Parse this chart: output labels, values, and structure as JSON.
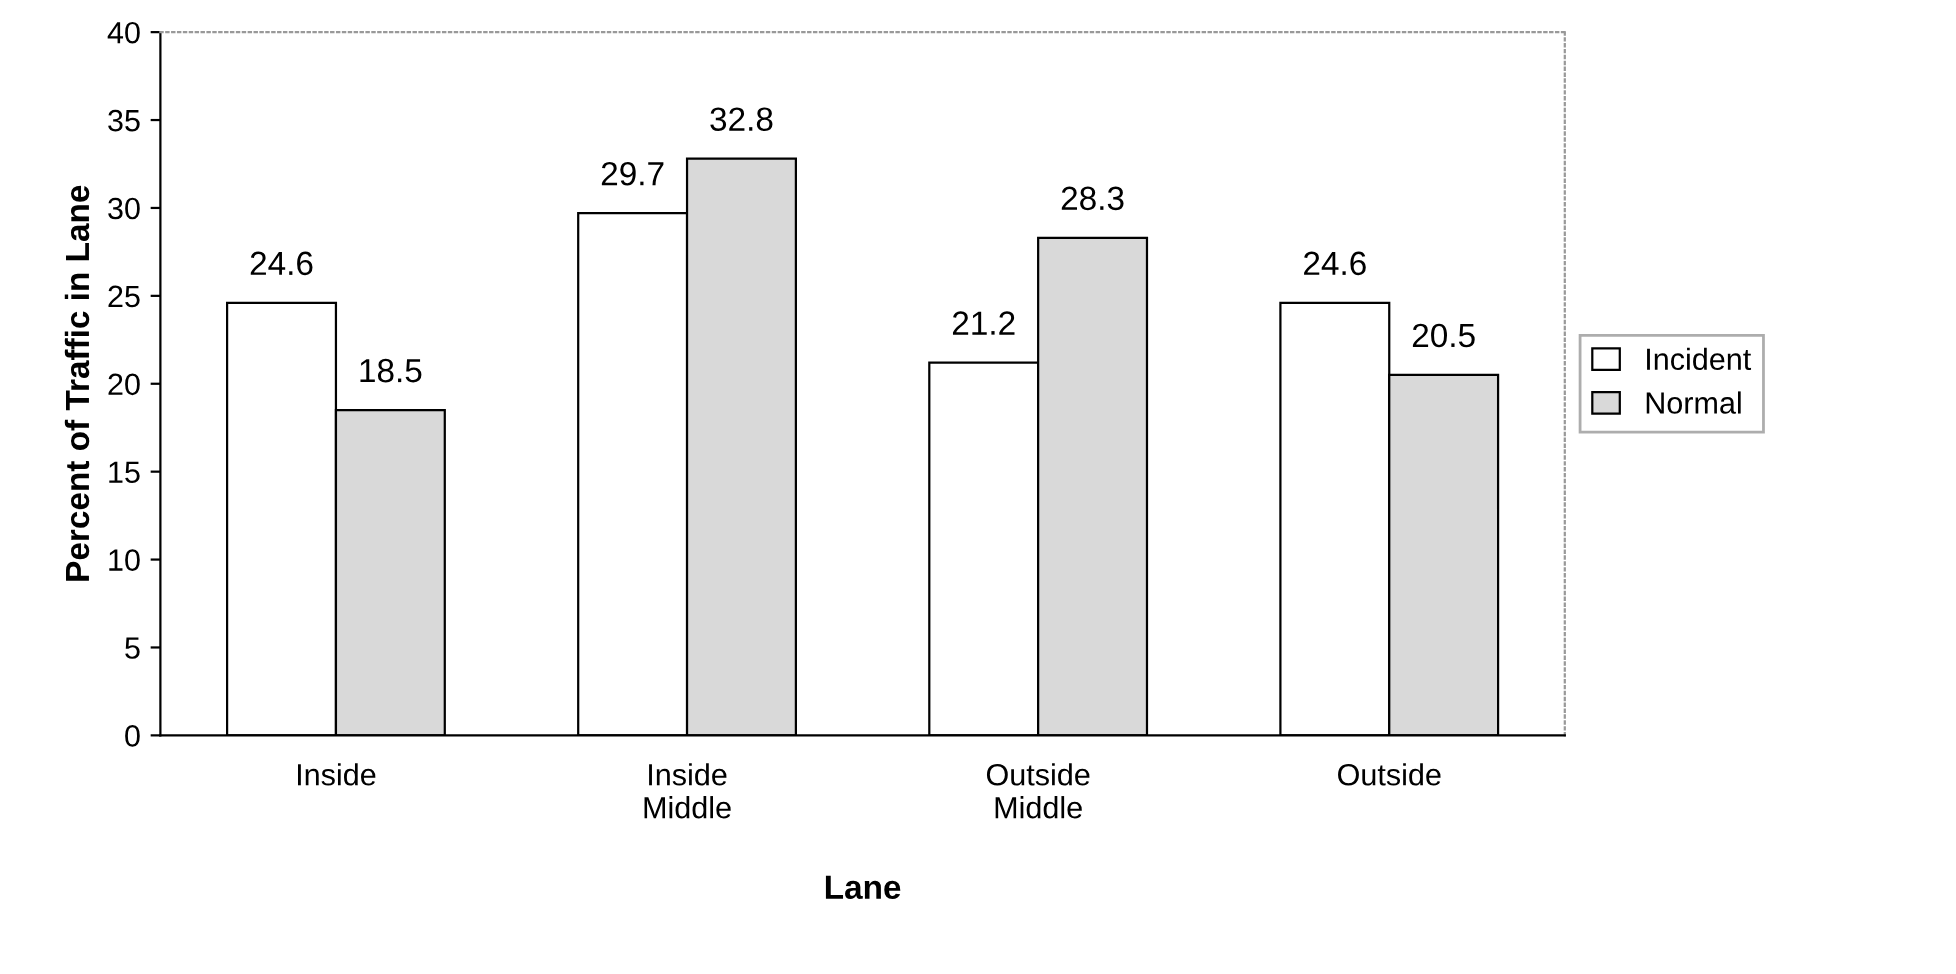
{
  "chart_data": {
    "type": "bar",
    "xlabel": "Lane",
    "ylabel": "Percent of Traffic in Lane",
    "categories": [
      "Inside",
      "Inside\nMiddle",
      "Outside\nMiddle",
      "Outside"
    ],
    "series": [
      {
        "name": "Incident",
        "color": "#ffffff",
        "values": [
          24.6,
          29.7,
          21.2,
          24.6
        ]
      },
      {
        "name": "Normal",
        "color": "#d9d9d9",
        "values": [
          18.5,
          32.8,
          28.3,
          20.5
        ]
      }
    ],
    "ylim": [
      0,
      40
    ],
    "yticks": [
      0,
      5,
      10,
      15,
      20,
      25,
      30,
      35,
      40
    ],
    "grid": false,
    "legend": "right",
    "data_labels": true
  }
}
